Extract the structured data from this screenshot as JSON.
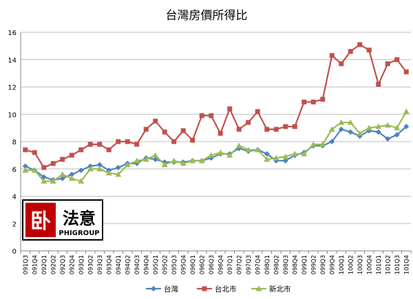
{
  "chart_data": {
    "type": "line",
    "title": "台灣房價所得比",
    "xlabel": "",
    "ylabel": "",
    "ylim": [
      0,
      16
    ],
    "yticks": [
      0,
      2,
      4,
      6,
      8,
      10,
      12,
      14,
      16
    ],
    "grid": true,
    "legend": "bottom",
    "categories": [
      "091Q3",
      "091Q4",
      "092Q1",
      "092Q2",
      "092Q3",
      "092Q4",
      "093Q1",
      "093Q2",
      "093Q3",
      "093Q4",
      "094Q1",
      "094Q2",
      "094Q3",
      "094Q4",
      "095Q1",
      "095Q2",
      "095Q3",
      "095Q4",
      "096Q1",
      "096Q2",
      "096Q3",
      "096Q4",
      "097Q1",
      "097Q2",
      "097Q3",
      "097Q4",
      "098Q1",
      "098Q2",
      "098Q3",
      "098Q4",
      "099Q1",
      "099Q2",
      "099Q3",
      "099Q4",
      "100Q1",
      "100Q2",
      "100Q3",
      "100Q4",
      "101Q1",
      "101Q2",
      "101Q3",
      "101Q4"
    ],
    "series": [
      {
        "name": "台灣",
        "color": "#4F81BD",
        "marker": "diamond",
        "values": [
          6.2,
          5.9,
          5.4,
          5.2,
          5.3,
          5.6,
          5.9,
          6.2,
          6.3,
          5.9,
          6.1,
          6.4,
          6.4,
          6.8,
          6.7,
          6.5,
          6.5,
          6.5,
          6.6,
          6.6,
          6.8,
          7.1,
          7.1,
          7.5,
          7.3,
          7.4,
          7.1,
          6.6,
          6.6,
          7.0,
          7.2,
          7.7,
          7.7,
          8.0,
          8.9,
          8.7,
          8.4,
          8.8,
          8.7,
          8.2,
          8.5,
          9.1
        ]
      },
      {
        "name": "台北市",
        "color": "#C0504D",
        "marker": "square",
        "values": [
          7.4,
          7.2,
          6.1,
          6.4,
          6.7,
          7.0,
          7.4,
          7.8,
          7.8,
          7.4,
          8.0,
          8.0,
          7.8,
          8.9,
          9.5,
          8.7,
          8.0,
          8.8,
          8.1,
          9.9,
          9.9,
          8.6,
          10.4,
          8.9,
          9.4,
          10.2,
          8.9,
          8.9,
          9.1,
          9.1,
          10.9,
          10.9,
          11.1,
          14.3,
          13.7,
          14.6,
          15.1,
          14.7,
          12.2,
          13.7,
          14.0,
          13.1
        ]
      },
      {
        "name": "新北市",
        "color": "#9BBB59",
        "marker": "triangle",
        "values": [
          5.9,
          5.9,
          5.1,
          5.1,
          5.6,
          5.3,
          5.1,
          6.0,
          6.0,
          5.7,
          5.6,
          6.3,
          6.6,
          6.7,
          7.0,
          6.3,
          6.6,
          6.4,
          6.6,
          6.6,
          7.0,
          7.2,
          7.0,
          7.7,
          7.4,
          7.4,
          6.7,
          6.8,
          6.9,
          7.1,
          7.1,
          7.8,
          7.8,
          8.9,
          9.4,
          9.4,
          8.6,
          9.0,
          9.1,
          9.2,
          9.0,
          10.2
        ]
      }
    ]
  },
  "logo": {
    "name": "法意",
    "subtitle": "PHIGROUP"
  }
}
